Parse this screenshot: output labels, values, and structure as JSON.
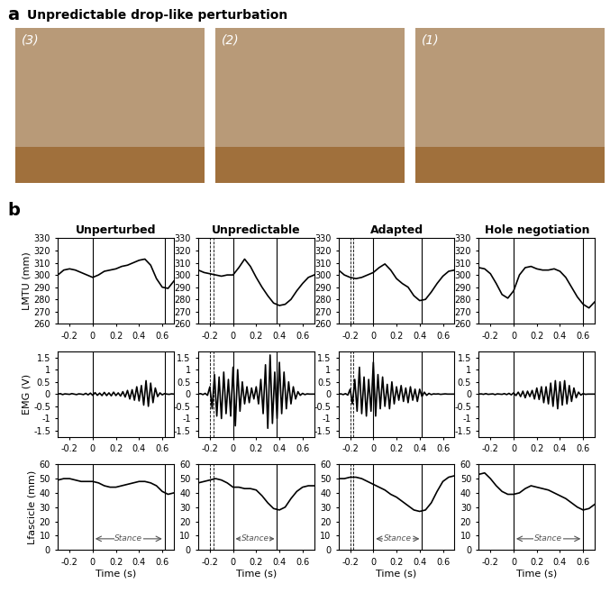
{
  "panel_a": {
    "label": "a",
    "title": "Unpredictable drop-like perturbation",
    "images": [
      "(3)",
      "(2)",
      "(1)"
    ]
  },
  "panel_b": {
    "label": "b"
  },
  "chart_data": [
    {
      "type": "line",
      "title": "Unperturbed",
      "y_label": "LMTU (mm)",
      "color": "#000000",
      "x": [
        -0.3,
        -0.25,
        -0.2,
        -0.15,
        -0.1,
        -0.05,
        0,
        0.05,
        0.1,
        0.15,
        0.2,
        0.25,
        0.3,
        0.35,
        0.4,
        0.45,
        0.5,
        0.55,
        0.6,
        0.65,
        0.7
      ],
      "values": [
        300,
        304,
        305,
        304,
        302,
        300,
        298,
        300,
        303,
        304,
        305,
        307,
        308,
        310,
        312,
        313,
        308,
        297,
        290,
        289,
        295
      ],
      "xlim": [
        -0.3,
        0.7
      ],
      "xticks": [
        -0.2,
        0,
        0.2,
        0.4,
        0.6
      ],
      "ylim": [
        260,
        330
      ],
      "yticks": [
        260,
        270,
        280,
        290,
        300,
        310,
        320,
        330
      ],
      "vlines": [
        0,
        0.62
      ],
      "dashed_vlines": []
    },
    {
      "type": "line",
      "title": "Unpredictable",
      "color": "#000000",
      "x": [
        -0.3,
        -0.25,
        -0.2,
        -0.15,
        -0.1,
        -0.05,
        0,
        0.05,
        0.1,
        0.15,
        0.2,
        0.25,
        0.3,
        0.35,
        0.4,
        0.45,
        0.5,
        0.55,
        0.6,
        0.65,
        0.7
      ],
      "values": [
        304,
        302,
        301,
        300,
        299,
        300,
        300,
        306,
        313,
        307,
        298,
        290,
        283,
        277,
        275,
        276,
        280,
        287,
        293,
        298,
        300
      ],
      "xlim": [
        -0.3,
        0.7
      ],
      "xticks": [
        -0.2,
        0,
        0.2,
        0.4,
        0.6
      ],
      "ylim": [
        260,
        330
      ],
      "yticks": [
        260,
        270,
        280,
        290,
        300,
        310,
        320,
        330
      ],
      "vlines": [
        0,
        0.38
      ],
      "dashed_vlines": [
        -0.2,
        -0.17
      ]
    },
    {
      "type": "line",
      "title": "Adapted",
      "color": "#000000",
      "x": [
        -0.3,
        -0.25,
        -0.2,
        -0.15,
        -0.1,
        -0.05,
        0,
        0.05,
        0.1,
        0.15,
        0.2,
        0.25,
        0.3,
        0.35,
        0.4,
        0.45,
        0.5,
        0.55,
        0.6,
        0.65,
        0.7
      ],
      "values": [
        304,
        300,
        298,
        297,
        298,
        300,
        302,
        306,
        309,
        304,
        297,
        293,
        290,
        283,
        279,
        280,
        286,
        293,
        299,
        303,
        304
      ],
      "xlim": [
        -0.3,
        0.7
      ],
      "xticks": [
        -0.2,
        0,
        0.2,
        0.4,
        0.6
      ],
      "ylim": [
        260,
        330
      ],
      "yticks": [
        260,
        270,
        280,
        290,
        300,
        310,
        320,
        330
      ],
      "vlines": [
        0,
        0.42
      ],
      "dashed_vlines": [
        -0.2,
        -0.17
      ]
    },
    {
      "type": "line",
      "title": "Hole negotiation",
      "color": "#000000",
      "x": [
        -0.3,
        -0.25,
        -0.2,
        -0.15,
        -0.1,
        -0.05,
        0,
        0.05,
        0.1,
        0.15,
        0.2,
        0.25,
        0.3,
        0.35,
        0.4,
        0.45,
        0.5,
        0.55,
        0.6,
        0.65,
        0.7
      ],
      "values": [
        306,
        305,
        301,
        293,
        284,
        281,
        287,
        300,
        306,
        307,
        305,
        304,
        304,
        305,
        303,
        298,
        290,
        282,
        276,
        273,
        278
      ],
      "xlim": [
        -0.3,
        0.7
      ],
      "xticks": [
        -0.2,
        0,
        0.2,
        0.4,
        0.6
      ],
      "ylim": [
        260,
        330
      ],
      "yticks": [
        260,
        270,
        280,
        290,
        300,
        310,
        320,
        330
      ],
      "vlines": [
        0,
        0.6
      ],
      "dashed_vlines": []
    },
    {
      "type": "line",
      "y_label": "EMG (V)",
      "color": "#000000",
      "x": [
        -0.3,
        -0.28,
        -0.26,
        -0.24,
        -0.22,
        -0.2,
        -0.18,
        -0.16,
        -0.14,
        -0.12,
        -0.1,
        -0.08,
        -0.06,
        -0.04,
        -0.02,
        0,
        0.02,
        0.04,
        0.06,
        0.08,
        0.1,
        0.12,
        0.14,
        0.16,
        0.18,
        0.2,
        0.22,
        0.24,
        0.26,
        0.28,
        0.3,
        0.32,
        0.34,
        0.36,
        0.38,
        0.4,
        0.42,
        0.44,
        0.46,
        0.48,
        0.5,
        0.52,
        0.54,
        0.56,
        0.58,
        0.6,
        0.62,
        0.64,
        0.66,
        0.68,
        0.7
      ],
      "values": [
        0,
        0.02,
        -0.02,
        0.01,
        0,
        -0.01,
        0.02,
        0,
        -0.02,
        0.01,
        0,
        -0.02,
        0.03,
        -0.03,
        0.04,
        -0.05,
        0.06,
        -0.05,
        0.04,
        -0.06,
        0.07,
        -0.06,
        0.05,
        -0.07,
        0.08,
        -0.06,
        0.05,
        -0.08,
        0.1,
        -0.12,
        0.15,
        -0.2,
        0.18,
        -0.25,
        0.3,
        -0.28,
        0.35,
        -0.45,
        0.55,
        -0.5,
        0.45,
        -0.35,
        0.25,
        -0.1,
        0.05,
        -0.03,
        0.02,
        0,
        -0.01,
        0.01,
        0
      ],
      "xlim": [
        -0.3,
        0.7
      ],
      "xticks": [
        -0.2,
        0,
        0.2,
        0.4,
        0.6
      ],
      "ylim": [
        -1.75,
        1.75
      ],
      "yticks": [
        -1.5,
        -1,
        -0.5,
        0,
        0.5,
        1,
        1.5
      ],
      "vlines": [
        0,
        0.62
      ],
      "dashed_vlines": []
    },
    {
      "type": "line",
      "color": "#000000",
      "x": [
        -0.3,
        -0.28,
        -0.26,
        -0.24,
        -0.22,
        -0.2,
        -0.18,
        -0.16,
        -0.14,
        -0.12,
        -0.1,
        -0.08,
        -0.06,
        -0.04,
        -0.02,
        0,
        0.02,
        0.04,
        0.06,
        0.08,
        0.1,
        0.12,
        0.14,
        0.16,
        0.18,
        0.2,
        0.22,
        0.24,
        0.26,
        0.28,
        0.3,
        0.32,
        0.34,
        0.36,
        0.38,
        0.4,
        0.42,
        0.44,
        0.46,
        0.48,
        0.5,
        0.52,
        0.54,
        0.56,
        0.58,
        0.6,
        0.62,
        0.64,
        0.66,
        0.68,
        0.7
      ],
      "values": [
        0,
        0.02,
        -0.02,
        0.03,
        -0.05,
        0.3,
        -0.6,
        0.8,
        -0.9,
        0.7,
        -1.0,
        0.9,
        -0.8,
        0.6,
        -0.9,
        1.1,
        -1.3,
        1.0,
        -0.7,
        0.5,
        -0.4,
        0.3,
        -0.35,
        0.25,
        -0.2,
        0.3,
        -0.4,
        0.6,
        -0.8,
        1.2,
        -1.4,
        1.6,
        -1.2,
        0.9,
        -1.0,
        1.3,
        -0.8,
        0.9,
        -0.6,
        0.5,
        -0.4,
        0.3,
        -0.2,
        0.1,
        -0.05,
        0.03,
        -0.02,
        0.01,
        0,
        0,
        0
      ],
      "xlim": [
        -0.3,
        0.7
      ],
      "xticks": [
        -0.2,
        0,
        0.2,
        0.4,
        0.6
      ],
      "ylim": [
        -1.75,
        1.75
      ],
      "yticks": [
        -1.5,
        -1,
        -0.5,
        0,
        0.5,
        1,
        1.5
      ],
      "vlines": [
        0,
        0.38
      ],
      "dashed_vlines": [
        -0.2,
        -0.17
      ]
    },
    {
      "type": "line",
      "color": "#000000",
      "x": [
        -0.3,
        -0.28,
        -0.26,
        -0.24,
        -0.22,
        -0.2,
        -0.18,
        -0.16,
        -0.14,
        -0.12,
        -0.1,
        -0.08,
        -0.06,
        -0.04,
        -0.02,
        0,
        0.02,
        0.04,
        0.06,
        0.08,
        0.1,
        0.12,
        0.14,
        0.16,
        0.18,
        0.2,
        0.22,
        0.24,
        0.26,
        0.28,
        0.3,
        0.32,
        0.34,
        0.36,
        0.38,
        0.4,
        0.42,
        0.44,
        0.46,
        0.48,
        0.5,
        0.52,
        0.54,
        0.56,
        0.58,
        0.6,
        0.62,
        0.64,
        0.66,
        0.68,
        0.7
      ],
      "values": [
        0,
        0.01,
        -0.02,
        0.02,
        -0.04,
        0.2,
        -0.4,
        0.6,
        -0.7,
        1.1,
        -0.8,
        0.7,
        -0.9,
        0.6,
        -0.7,
        1.3,
        -0.9,
        0.8,
        -0.6,
        0.7,
        -0.5,
        0.4,
        -0.6,
        0.5,
        -0.4,
        0.3,
        -0.25,
        0.35,
        -0.3,
        0.25,
        -0.35,
        0.3,
        -0.25,
        0.2,
        -0.3,
        0.2,
        -0.1,
        0.08,
        -0.05,
        0.03,
        -0.02,
        0.01,
        0,
        0.01,
        -0.01,
        0,
        0.01,
        0,
        0,
        0,
        0
      ],
      "xlim": [
        -0.3,
        0.7
      ],
      "xticks": [
        -0.2,
        0,
        0.2,
        0.4,
        0.6
      ],
      "ylim": [
        -1.75,
        1.75
      ],
      "yticks": [
        -1.5,
        -1,
        -0.5,
        0,
        0.5,
        1,
        1.5
      ],
      "vlines": [
        0,
        0.42
      ],
      "dashed_vlines": [
        -0.2,
        -0.17
      ]
    },
    {
      "type": "line",
      "color": "#000000",
      "x": [
        -0.3,
        -0.28,
        -0.26,
        -0.24,
        -0.22,
        -0.2,
        -0.18,
        -0.16,
        -0.14,
        -0.12,
        -0.1,
        -0.08,
        -0.06,
        -0.04,
        -0.02,
        0,
        0.02,
        0.04,
        0.06,
        0.08,
        0.1,
        0.12,
        0.14,
        0.16,
        0.18,
        0.2,
        0.22,
        0.24,
        0.26,
        0.28,
        0.3,
        0.32,
        0.34,
        0.36,
        0.38,
        0.4,
        0.42,
        0.44,
        0.46,
        0.48,
        0.5,
        0.52,
        0.54,
        0.56,
        0.58,
        0.6,
        0.62,
        0.64,
        0.66,
        0.68,
        0.7
      ],
      "values": [
        0,
        0.01,
        -0.01,
        0.02,
        -0.01,
        0,
        0.01,
        -0.02,
        0.01,
        0,
        -0.01,
        0.02,
        -0.02,
        0.03,
        -0.03,
        0.05,
        -0.06,
        0.08,
        -0.1,
        0.12,
        -0.15,
        0.12,
        -0.1,
        0.15,
        -0.2,
        0.25,
        -0.22,
        0.3,
        -0.35,
        0.3,
        -0.4,
        0.45,
        -0.5,
        0.55,
        -0.6,
        0.5,
        -0.45,
        0.55,
        -0.4,
        0.35,
        -0.3,
        0.25,
        -0.15,
        0.08,
        -0.04,
        0.02,
        -0.01,
        0,
        0,
        0,
        0
      ],
      "xlim": [
        -0.3,
        0.7
      ],
      "xticks": [
        -0.2,
        0,
        0.2,
        0.4,
        0.6
      ],
      "ylim": [
        -1.75,
        1.75
      ],
      "yticks": [
        -1.5,
        -1,
        -0.5,
        0,
        0.5,
        1,
        1.5
      ],
      "vlines": [
        0,
        0.6
      ],
      "dashed_vlines": []
    },
    {
      "type": "line",
      "y_label": "Lfascicle (mm)",
      "x_label": "Time (s)",
      "color": "#000000",
      "annotation": "Stance",
      "x": [
        -0.3,
        -0.25,
        -0.2,
        -0.15,
        -0.1,
        -0.05,
        0,
        0.05,
        0.1,
        0.15,
        0.2,
        0.25,
        0.3,
        0.35,
        0.4,
        0.45,
        0.5,
        0.55,
        0.6,
        0.65,
        0.7
      ],
      "values": [
        49,
        50,
        50,
        49,
        48,
        48,
        48,
        47,
        45,
        44,
        44,
        45,
        46,
        47,
        48,
        48,
        47,
        45,
        41,
        39,
        40
      ],
      "xlim": [
        -0.3,
        0.7
      ],
      "xticks": [
        -0.2,
        0,
        0.2,
        0.4,
        0.6
      ],
      "ylim": [
        0,
        60
      ],
      "yticks": [
        0,
        10,
        20,
        30,
        40,
        50,
        60
      ],
      "vlines": [
        0,
        0.62
      ],
      "dashed_vlines": []
    },
    {
      "type": "line",
      "x_label": "Time (s)",
      "color": "#000000",
      "annotation": "Stance",
      "x": [
        -0.3,
        -0.25,
        -0.2,
        -0.15,
        -0.1,
        -0.05,
        0,
        0.05,
        0.1,
        0.15,
        0.2,
        0.25,
        0.3,
        0.35,
        0.4,
        0.45,
        0.5,
        0.55,
        0.6,
        0.65,
        0.7
      ],
      "values": [
        47,
        48,
        49,
        50,
        49,
        47,
        44,
        44,
        43,
        43,
        42,
        38,
        33,
        29,
        28,
        30,
        36,
        41,
        44,
        45,
        45
      ],
      "xlim": [
        -0.3,
        0.7
      ],
      "xticks": [
        -0.2,
        0,
        0.2,
        0.4,
        0.6
      ],
      "ylim": [
        0,
        60
      ],
      "yticks": [
        0,
        10,
        20,
        30,
        40,
        50,
        60
      ],
      "vlines": [
        0,
        0.38
      ],
      "dashed_vlines": [
        -0.2,
        -0.17
      ]
    },
    {
      "type": "line",
      "x_label": "Time (s)",
      "color": "#000000",
      "annotation": "Stance",
      "x": [
        -0.3,
        -0.25,
        -0.2,
        -0.15,
        -0.1,
        -0.05,
        0,
        0.05,
        0.1,
        0.15,
        0.2,
        0.25,
        0.3,
        0.35,
        0.4,
        0.45,
        0.5,
        0.55,
        0.6,
        0.65,
        0.7
      ],
      "values": [
        50,
        50,
        51,
        51,
        50,
        48,
        46,
        44,
        42,
        39,
        37,
        34,
        31,
        28,
        27,
        28,
        33,
        41,
        48,
        51,
        52
      ],
      "xlim": [
        -0.3,
        0.7
      ],
      "xticks": [
        -0.2,
        0,
        0.2,
        0.4,
        0.6
      ],
      "ylim": [
        0,
        60
      ],
      "yticks": [
        0,
        10,
        20,
        30,
        40,
        50,
        60
      ],
      "vlines": [
        0,
        0.42
      ],
      "dashed_vlines": [
        -0.2,
        -0.17
      ]
    },
    {
      "type": "line",
      "x_label": "Time (s)",
      "color": "#000000",
      "annotation": "Stance",
      "x": [
        -0.3,
        -0.25,
        -0.2,
        -0.15,
        -0.1,
        -0.05,
        0,
        0.05,
        0.1,
        0.15,
        0.2,
        0.25,
        0.3,
        0.35,
        0.4,
        0.45,
        0.5,
        0.55,
        0.6,
        0.65,
        0.7
      ],
      "values": [
        53,
        54,
        50,
        45,
        41,
        39,
        39,
        40,
        43,
        45,
        44,
        43,
        42,
        40,
        38,
        36,
        33,
        30,
        28,
        29,
        32
      ],
      "xlim": [
        -0.3,
        0.7
      ],
      "xticks": [
        -0.2,
        0,
        0.2,
        0.4,
        0.6
      ],
      "ylim": [
        0,
        60
      ],
      "yticks": [
        0,
        10,
        20,
        30,
        40,
        50,
        60
      ],
      "vlines": [
        0,
        0.6
      ],
      "dashed_vlines": []
    }
  ]
}
